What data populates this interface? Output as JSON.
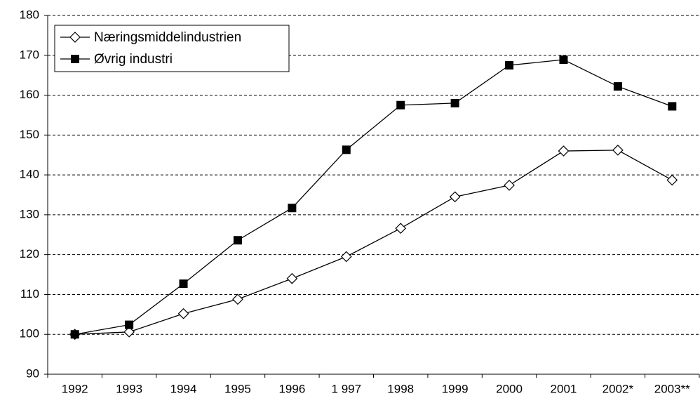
{
  "chart_data": {
    "type": "line",
    "categories": [
      "1992",
      "1993",
      "1994",
      "1995",
      "1996",
      "1 997",
      "1998",
      "1999",
      "2000",
      "2001",
      "2002*",
      "2003**"
    ],
    "series": [
      {
        "name": "Næringsmiddelindustrien",
        "color": "#000000",
        "marker": "diamond",
        "values": [
          100,
          100.6,
          105.2,
          108.8,
          114,
          119.5,
          126.6,
          134.5,
          137.4,
          146,
          146.2,
          138.7
        ]
      },
      {
        "name": "Øvrig industri",
        "color": "#000000",
        "marker": "square",
        "values": [
          100,
          102.4,
          112.7,
          123.6,
          131.7,
          146.3,
          157.5,
          158,
          167.5,
          168.9,
          162.2,
          157.2
        ]
      }
    ],
    "ylim": [
      90,
      180
    ],
    "yticks": [
      90,
      100,
      110,
      120,
      130,
      140,
      150,
      160,
      170,
      180
    ],
    "grid": true,
    "legend": "top-left"
  }
}
